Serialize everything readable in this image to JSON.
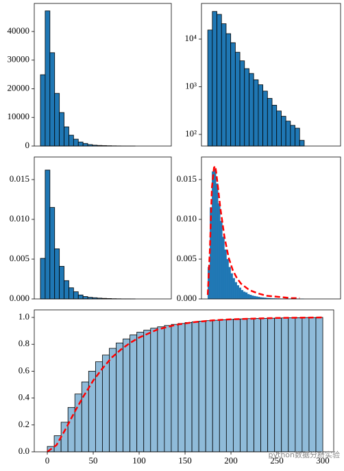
{
  "chart_data": [
    {
      "type": "histogram",
      "color": "#1f77b4",
      "edgecolor": "#000000",
      "bins": [
        0,
        11.5,
        23,
        34.5,
        46,
        57.5,
        69,
        80.5,
        92,
        103.5,
        115,
        126.5,
        138,
        149.5,
        161,
        172.5,
        184,
        195.5,
        207,
        218.5,
        230
      ],
      "values": [
        24900,
        47200,
        32600,
        18400,
        11700,
        6700,
        3800,
        2400,
        1400,
        900,
        500,
        300,
        200,
        150,
        100,
        60,
        40,
        20,
        10,
        5
      ],
      "xlim": [
        -15,
        318
      ],
      "ylim": [
        0,
        49800
      ],
      "yticks": [
        0,
        10000,
        20000,
        30000,
        40000
      ]
    },
    {
      "type": "histogram",
      "color": "#1f77b4",
      "edgecolor": "#000000",
      "yscale": "log",
      "bins": [
        0,
        11,
        22,
        33,
        44,
        55,
        66,
        77,
        88,
        99,
        110,
        121,
        132,
        143,
        154,
        165,
        176,
        187,
        198,
        209,
        220,
        231
      ],
      "values": [
        15500,
        38000,
        33000,
        21000,
        13000,
        8400,
        5300,
        3500,
        2400,
        1900,
        1400,
        1100,
        810,
        570,
        410,
        310,
        240,
        190,
        155,
        135,
        75
      ],
      "xlim": [
        -15,
        318
      ],
      "ylim": [
        57,
        56000
      ],
      "yticks": [
        {
          "value": 100,
          "label": "10²"
        },
        {
          "value": 1000,
          "label": "10³"
        },
        {
          "value": 10000,
          "label": "10⁴"
        }
      ]
    },
    {
      "type": "histogram",
      "color": "#1f77b4",
      "edgecolor": "#000000",
      "bins": [
        0,
        11.5,
        23,
        34.5,
        46,
        57.5,
        69,
        80.5,
        92,
        103.5,
        115,
        126.5,
        138,
        149.5,
        161,
        172.5,
        184,
        195.5,
        207,
        218.5,
        230
      ],
      "values": [
        0.0051,
        0.0162,
        0.0115,
        0.0063,
        0.0041,
        0.0023,
        0.0014,
        0.0009,
        0.0005,
        0.0003,
        0.0002,
        0.00015,
        0.0001,
        7e-05,
        5e-05,
        3e-05,
        2e-05,
        1e-05,
        1e-05,
        5e-06
      ],
      "xlim": [
        -15,
        318
      ],
      "ylim": [
        0,
        0.01784
      ],
      "yticks": [
        {
          "value": 0,
          "label": "0.000"
        },
        0.005,
        {
          "value": 0.01,
          "label": "0.010"
        },
        0.015
      ]
    },
    {
      "type": "histogram",
      "color": "#1f77b4",
      "bins": [
        0,
        5,
        10,
        15,
        20,
        25,
        30,
        35,
        40,
        45,
        50,
        55,
        60,
        65,
        70,
        75,
        80,
        85,
        90,
        95,
        100,
        105,
        110,
        115,
        120,
        125,
        130,
        135,
        140,
        145,
        150,
        155,
        160,
        165,
        170,
        175,
        180,
        185,
        190,
        195,
        200,
        205,
        210,
        215,
        220,
        225,
        230
      ],
      "values": [
        0.004,
        0.0115,
        0.016,
        0.0163,
        0.0145,
        0.012,
        0.0098,
        0.0078,
        0.0062,
        0.005,
        0.004,
        0.0032,
        0.0026,
        0.0021,
        0.0017,
        0.0014,
        0.0011,
        0.0009,
        0.0008,
        0.0006,
        0.0005,
        0.0004,
        0.00035,
        0.0003,
        0.00025,
        0.0002,
        0.00017,
        0.00014,
        0.00012,
        0.0001,
        8e-05,
        7e-05,
        6e-05,
        5e-05,
        4e-05,
        3e-05,
        3e-05,
        2e-05,
        2e-05,
        2e-05,
        1e-05,
        1e-05,
        1e-05,
        1e-05,
        1e-05,
        1e-05
      ],
      "kde": {
        "color": "#ff0000",
        "x": [
          0,
          5,
          10,
          15,
          18,
          20,
          25,
          30,
          40,
          50,
          60,
          70,
          80,
          100,
          120,
          140,
          160,
          180,
          200,
          220
        ],
        "values": [
          0.0005,
          0.006,
          0.014,
          0.0165,
          0.0167,
          0.016,
          0.0138,
          0.0115,
          0.0078,
          0.0052,
          0.0036,
          0.0026,
          0.0019,
          0.0011,
          0.0007,
          0.0004,
          0.0003,
          0.0002,
          0.0001,
          0.0001
        ]
      },
      "xlim": [
        -15,
        318
      ],
      "ylim": [
        0,
        0.01784
      ],
      "yticks": [
        {
          "value": 0,
          "label": "0.000"
        },
        0.005,
        {
          "value": 0.01,
          "label": "0.010"
        },
        0.015
      ]
    },
    {
      "type": "histogram",
      "color": "#8fbbd9",
      "edgecolor": "#000000",
      "bins": [
        0,
        7.5,
        15,
        22.5,
        30,
        37.5,
        45,
        52.5,
        60,
        67.5,
        75,
        82.5,
        90,
        97.5,
        105,
        112.5,
        120,
        127.5,
        135,
        142.5,
        150,
        157.5,
        165,
        172.5,
        180,
        187.5,
        195,
        202.5,
        210,
        217.5,
        225,
        232.5,
        240,
        247.5,
        255,
        262.5,
        270,
        277.5,
        285,
        292.5,
        300
      ],
      "values": [
        0.04,
        0.12,
        0.22,
        0.33,
        0.43,
        0.52,
        0.6,
        0.67,
        0.72,
        0.77,
        0.81,
        0.84,
        0.87,
        0.89,
        0.905,
        0.92,
        0.93,
        0.94,
        0.948,
        0.955,
        0.962,
        0.967,
        0.972,
        0.976,
        0.979,
        0.982,
        0.985,
        0.987,
        0.989,
        0.991,
        0.992,
        0.993,
        0.994,
        0.995,
        0.996,
        0.997,
        0.998,
        0.999,
        0.999,
        1.0
      ],
      "kde": {
        "color": "#ff0000",
        "x": [
          0,
          10,
          20,
          30,
          40,
          50,
          60,
          70,
          80,
          90,
          100,
          120,
          140,
          160,
          180,
          200,
          250,
          300
        ],
        "values": [
          0,
          0.05,
          0.17,
          0.3,
          0.42,
          0.53,
          0.62,
          0.7,
          0.76,
          0.81,
          0.85,
          0.91,
          0.945,
          0.965,
          0.978,
          0.986,
          0.996,
          1.0
        ]
      },
      "xlim": [
        -14.2,
        311.9
      ],
      "ylim": [
        0,
        1.056
      ],
      "xticks": [
        0,
        50,
        100,
        150,
        200,
        250,
        300
      ],
      "yticks": [
        {
          "value": 0,
          "label": "0.0"
        },
        0.2,
        0.4,
        0.6,
        0.8,
        {
          "value": 1,
          "label": "1.0"
        }
      ]
    }
  ],
  "watermark": "python数据分析实验"
}
